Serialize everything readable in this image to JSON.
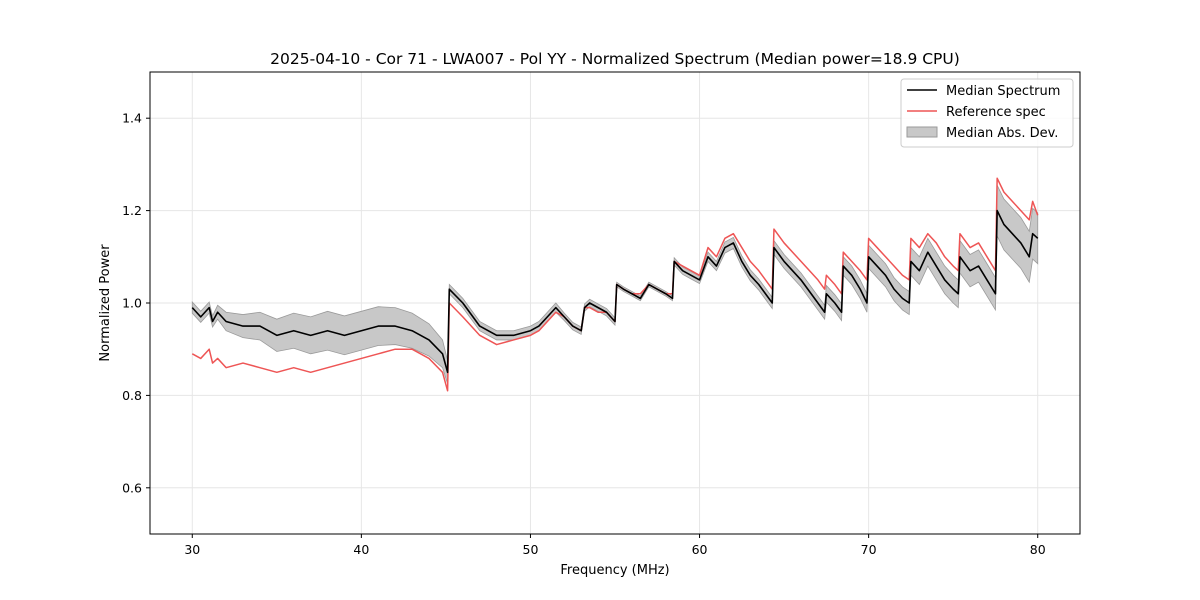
{
  "chart_data": {
    "type": "line",
    "title": "2025-04-10 - Cor 71 - LWA007 - Pol YY - Normalized Spectrum (Median power=18.9 CPU)",
    "xlabel": "Frequency (MHz)",
    "ylabel": "Normalized Power",
    "xlim": [
      27.5,
      82.5
    ],
    "ylim": [
      0.5,
      1.5
    ],
    "xticks": [
      30,
      40,
      50,
      60,
      70,
      80
    ],
    "yticks": [
      0.6,
      0.8,
      1.0,
      1.2,
      1.4
    ],
    "grid": true,
    "legend_position": "top-right",
    "legend": [
      "Median Spectrum",
      "Reference spec",
      "Median Abs. Dev."
    ],
    "colors": {
      "median": "#000000",
      "reference": "#ee5555",
      "mad_fill": "#c8c8c8",
      "mad_edge": "#9a9a9a",
      "grid": "#e6e6e6"
    },
    "series": [
      {
        "name": "Median Spectrum",
        "x": [
          30.0,
          30.5,
          31.0,
          31.2,
          31.5,
          32.0,
          33.0,
          34.0,
          35.0,
          36.0,
          37.0,
          38.0,
          39.0,
          40.0,
          41.0,
          42.0,
          43.0,
          44.0,
          44.8,
          45.1,
          45.2,
          46.0,
          47.0,
          48.0,
          49.0,
          50.0,
          50.5,
          51.0,
          51.5,
          52.0,
          52.5,
          53.0,
          53.2,
          53.5,
          54.0,
          54.5,
          55.0,
          55.1,
          55.5,
          56.0,
          56.5,
          57.0,
          57.5,
          58.0,
          58.4,
          58.5,
          59.0,
          59.5,
          60.0,
          60.5,
          61.0,
          61.5,
          62.0,
          62.5,
          63.0,
          63.5,
          64.3,
          64.4,
          65.0,
          66.0,
          67.0,
          67.4,
          67.5,
          68.0,
          68.4,
          68.5,
          69.0,
          69.5,
          69.9,
          70.0,
          70.5,
          71.0,
          71.5,
          72.0,
          72.4,
          72.5,
          73.0,
          73.5,
          74.0,
          74.5,
          75.0,
          75.3,
          75.4,
          76.0,
          76.5,
          77.0,
          77.5,
          77.6,
          78.0,
          78.5,
          79.0,
          79.5,
          79.7,
          80.0
        ],
        "values": [
          0.99,
          0.97,
          0.99,
          0.96,
          0.98,
          0.96,
          0.95,
          0.95,
          0.93,
          0.94,
          0.93,
          0.94,
          0.93,
          0.94,
          0.95,
          0.95,
          0.94,
          0.92,
          0.89,
          0.85,
          1.03,
          1.0,
          0.95,
          0.93,
          0.93,
          0.94,
          0.95,
          0.97,
          0.99,
          0.97,
          0.95,
          0.94,
          0.99,
          1.0,
          0.99,
          0.98,
          0.96,
          1.04,
          1.03,
          1.02,
          1.01,
          1.04,
          1.03,
          1.02,
          1.01,
          1.09,
          1.07,
          1.06,
          1.05,
          1.1,
          1.08,
          1.12,
          1.13,
          1.09,
          1.06,
          1.04,
          1.0,
          1.12,
          1.09,
          1.05,
          1.0,
          0.98,
          1.02,
          1.0,
          0.98,
          1.08,
          1.06,
          1.03,
          1.0,
          1.1,
          1.08,
          1.06,
          1.03,
          1.01,
          1.0,
          1.09,
          1.07,
          1.11,
          1.08,
          1.05,
          1.03,
          1.02,
          1.1,
          1.07,
          1.08,
          1.05,
          1.02,
          1.2,
          1.17,
          1.15,
          1.13,
          1.1,
          1.15,
          1.14
        ]
      },
      {
        "name": "Reference spec",
        "x": [
          30.0,
          30.5,
          31.0,
          31.2,
          31.5,
          32.0,
          33.0,
          34.0,
          35.0,
          36.0,
          37.0,
          38.0,
          39.0,
          40.0,
          41.0,
          42.0,
          43.0,
          44.0,
          44.8,
          45.1,
          45.2,
          46.0,
          47.0,
          48.0,
          49.0,
          50.0,
          50.5,
          51.0,
          51.5,
          52.0,
          52.5,
          53.0,
          53.2,
          53.5,
          54.0,
          54.5,
          55.0,
          55.1,
          55.5,
          56.0,
          56.5,
          57.0,
          57.5,
          58.0,
          58.4,
          58.5,
          59.0,
          59.5,
          60.0,
          60.5,
          61.0,
          61.5,
          62.0,
          62.5,
          63.0,
          63.5,
          64.3,
          64.4,
          65.0,
          66.0,
          67.0,
          67.4,
          67.5,
          68.0,
          68.4,
          68.5,
          69.0,
          69.5,
          69.9,
          70.0,
          70.5,
          71.0,
          71.5,
          72.0,
          72.4,
          72.5,
          73.0,
          73.5,
          74.0,
          74.5,
          75.0,
          75.3,
          75.4,
          76.0,
          76.5,
          77.0,
          77.5,
          77.6,
          78.0,
          78.5,
          79.0,
          79.5,
          79.7,
          80.0
        ],
        "values": [
          0.89,
          0.88,
          0.9,
          0.87,
          0.88,
          0.86,
          0.87,
          0.86,
          0.85,
          0.86,
          0.85,
          0.86,
          0.87,
          0.88,
          0.89,
          0.9,
          0.9,
          0.88,
          0.85,
          0.81,
          1.0,
          0.97,
          0.93,
          0.91,
          0.92,
          0.93,
          0.94,
          0.96,
          0.98,
          0.97,
          0.95,
          0.94,
          0.99,
          0.99,
          0.98,
          0.98,
          0.96,
          1.04,
          1.03,
          1.02,
          1.02,
          1.04,
          1.03,
          1.02,
          1.02,
          1.09,
          1.08,
          1.07,
          1.06,
          1.12,
          1.1,
          1.14,
          1.15,
          1.12,
          1.09,
          1.07,
          1.03,
          1.16,
          1.13,
          1.09,
          1.05,
          1.03,
          1.06,
          1.04,
          1.02,
          1.11,
          1.09,
          1.07,
          1.05,
          1.14,
          1.12,
          1.1,
          1.08,
          1.06,
          1.05,
          1.14,
          1.12,
          1.15,
          1.13,
          1.1,
          1.08,
          1.07,
          1.15,
          1.12,
          1.13,
          1.1,
          1.07,
          1.27,
          1.24,
          1.22,
          1.2,
          1.18,
          1.22,
          1.19
        ]
      },
      {
        "name": "Median Abs. Dev.",
        "x": [
          30.0,
          30.5,
          31.0,
          31.2,
          31.5,
          32.0,
          33.0,
          34.0,
          35.0,
          36.0,
          37.0,
          38.0,
          39.0,
          40.0,
          41.0,
          42.0,
          43.0,
          44.0,
          44.8,
          45.1,
          45.2,
          46.0,
          47.0,
          48.0,
          49.0,
          50.0,
          50.5,
          51.0,
          51.5,
          52.0,
          52.5,
          53.0,
          53.2,
          53.5,
          54.0,
          54.5,
          55.0,
          55.1,
          55.5,
          56.0,
          56.5,
          57.0,
          57.5,
          58.0,
          58.4,
          58.5,
          59.0,
          59.5,
          60.0,
          60.5,
          61.0,
          61.5,
          62.0,
          62.5,
          63.0,
          63.5,
          64.3,
          64.4,
          65.0,
          66.0,
          67.0,
          67.4,
          67.5,
          68.0,
          68.4,
          68.5,
          69.0,
          69.5,
          69.9,
          70.0,
          70.5,
          71.0,
          71.5,
          72.0,
          72.4,
          72.5,
          73.0,
          73.5,
          74.0,
          74.5,
          75.0,
          75.3,
          75.4,
          76.0,
          76.5,
          77.0,
          77.5,
          77.6,
          78.0,
          78.5,
          79.0,
          79.5,
          79.7,
          80.0
        ],
        "deviation": [
          0.012,
          0.012,
          0.012,
          0.012,
          0.015,
          0.02,
          0.025,
          0.03,
          0.035,
          0.038,
          0.04,
          0.042,
          0.042,
          0.042,
          0.042,
          0.04,
          0.038,
          0.035,
          0.03,
          0.025,
          0.01,
          0.01,
          0.01,
          0.01,
          0.01,
          0.01,
          0.01,
          0.01,
          0.01,
          0.008,
          0.008,
          0.008,
          0.008,
          0.008,
          0.008,
          0.008,
          0.008,
          0.005,
          0.005,
          0.005,
          0.005,
          0.005,
          0.005,
          0.005,
          0.005,
          0.008,
          0.008,
          0.008,
          0.008,
          0.01,
          0.01,
          0.012,
          0.012,
          0.012,
          0.012,
          0.012,
          0.012,
          0.015,
          0.015,
          0.015,
          0.015,
          0.015,
          0.018,
          0.018,
          0.018,
          0.02,
          0.02,
          0.02,
          0.02,
          0.025,
          0.025,
          0.025,
          0.025,
          0.025,
          0.025,
          0.03,
          0.03,
          0.03,
          0.03,
          0.03,
          0.03,
          0.03,
          0.035,
          0.035,
          0.035,
          0.035,
          0.035,
          0.055,
          0.055,
          0.055,
          0.055,
          0.055,
          0.055,
          0.055
        ]
      }
    ]
  }
}
